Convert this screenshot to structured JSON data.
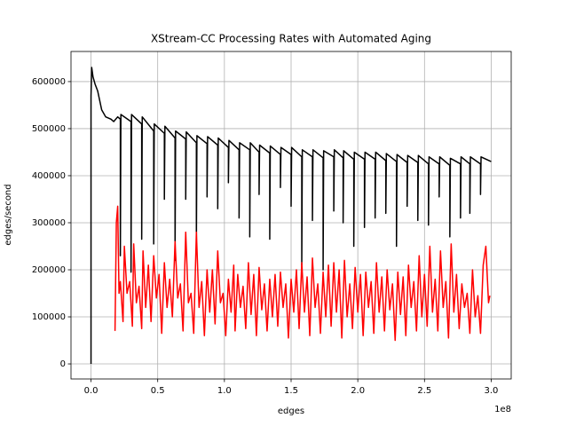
{
  "chart_data": {
    "type": "line",
    "title": "XStream-CC Processing Rates with Automated Aging",
    "x_label": "edges",
    "y_label": "edges/second",
    "x_offset_label": "1e8",
    "xlim": [
      -15000000,
      315000000
    ],
    "ylim": [
      -32000,
      664000
    ],
    "xticks": [
      {
        "value": 0,
        "label": "0.0"
      },
      {
        "value": 50000000,
        "label": "0.5"
      },
      {
        "value": 100000000,
        "label": "1.0"
      },
      {
        "value": 150000000,
        "label": "1.5"
      },
      {
        "value": 200000000,
        "label": "2.0"
      },
      {
        "value": 250000000,
        "label": "2.5"
      },
      {
        "value": 300000000,
        "label": "3.0"
      }
    ],
    "yticks": [
      0,
      100000,
      200000,
      300000,
      400000,
      500000,
      600000
    ],
    "grid": true,
    "series": [
      {
        "color": "#000000",
        "x": [
          0,
          0,
          500000,
          1500000,
          3000000,
          5000000,
          8000000,
          11000000,
          15000000,
          17000000,
          20000000,
          22000000,
          22000000,
          22400000,
          30000000,
          30000000,
          30400000,
          38000000,
          38000000,
          38400000,
          47000000,
          47000000,
          47400000,
          55000000,
          55000000,
          55400000,
          63000000,
          63000000,
          63400000,
          71000000,
          71000000,
          71400000,
          79000000,
          79000000,
          79400000,
          87000000,
          87000000,
          87400000,
          95000000,
          95000000,
          95400000,
          103000000,
          103000000,
          103400000,
          111000000,
          111000000,
          111400000,
          119000000,
          119000000,
          119400000,
          126000000,
          126000000,
          126400000,
          134000000,
          134000000,
          134400000,
          142000000,
          142000000,
          142400000,
          150000000,
          150000000,
          150400000,
          158000000,
          158000000,
          158400000,
          166000000,
          166000000,
          166400000,
          174000000,
          174000000,
          174400000,
          182000000,
          182000000,
          182400000,
          189000000,
          189000000,
          189400000,
          197000000,
          197000000,
          197400000,
          205000000,
          205000000,
          205400000,
          213000000,
          213000000,
          213400000,
          221000000,
          221000000,
          221400000,
          229000000,
          229000000,
          229400000,
          237000000,
          237000000,
          237400000,
          245000000,
          245000000,
          245400000,
          253000000,
          253000000,
          253400000,
          261000000,
          261000000,
          261400000,
          269000000,
          269000000,
          269400000,
          277000000,
          277000000,
          277400000,
          284000000,
          284000000,
          284400000,
          292000000,
          292000000,
          292400000,
          300000000
        ],
        "values": [
          0,
          570000,
          630000,
          610000,
          595000,
          580000,
          540000,
          525000,
          520000,
          515000,
          525000,
          520000,
          230000,
          530000,
          515000,
          195000,
          530000,
          510000,
          265000,
          525000,
          495000,
          255000,
          510000,
          490000,
          350000,
          505000,
          480000,
          220000,
          495000,
          478000,
          350000,
          493000,
          470000,
          260000,
          485000,
          468000,
          355000,
          483000,
          465000,
          330000,
          480000,
          460000,
          385000,
          475000,
          455000,
          310000,
          470000,
          455000,
          270000,
          470000,
          450000,
          360000,
          465000,
          448000,
          265000,
          463000,
          445000,
          375000,
          460000,
          445000,
          335000,
          460000,
          440000,
          210000,
          455000,
          440000,
          305000,
          455000,
          438000,
          200000,
          453000,
          440000,
          325000,
          455000,
          438000,
          300000,
          453000,
          435000,
          250000,
          450000,
          435000,
          290000,
          450000,
          435000,
          310000,
          450000,
          432000,
          320000,
          447000,
          430000,
          250000,
          445000,
          428000,
          335000,
          443000,
          428000,
          305000,
          443000,
          425000,
          295000,
          440000,
          425000,
          355000,
          440000,
          422000,
          270000,
          437000,
          425000,
          310000,
          440000,
          425000,
          320000,
          440000,
          425000,
          360000,
          440000,
          430000
        ]
      },
      {
        "color": "#ff0000",
        "x": [
          18000000,
          19000000,
          20000000,
          21000000,
          22000000,
          24000000,
          25000000,
          27000000,
          29000000,
          31000000,
          32000000,
          34000000,
          36000000,
          38000000,
          39000000,
          41000000,
          43000000,
          45000000,
          47000000,
          49000000,
          51000000,
          53000000,
          55000000,
          57000000,
          59000000,
          61000000,
          63000000,
          65000000,
          67000000,
          69000000,
          71000000,
          73000000,
          75000000,
          77000000,
          79000000,
          81000000,
          83000000,
          85000000,
          87000000,
          89000000,
          91000000,
          93000000,
          95000000,
          97000000,
          99000000,
          101000000,
          103000000,
          105000000,
          107000000,
          108000000,
          110000000,
          112000000,
          114000000,
          116000000,
          118000000,
          120000000,
          122000000,
          124000000,
          126000000,
          128000000,
          130000000,
          132000000,
          134000000,
          136000000,
          138000000,
          140000000,
          142000000,
          144000000,
          146000000,
          148000000,
          150000000,
          152000000,
          154000000,
          156000000,
          158000000,
          160000000,
          162000000,
          164000000,
          166000000,
          168000000,
          170000000,
          172000000,
          174000000,
          176000000,
          178000000,
          180000000,
          182000000,
          184000000,
          186000000,
          188000000,
          190000000,
          192000000,
          194000000,
          196000000,
          198000000,
          200000000,
          202000000,
          204000000,
          206000000,
          208000000,
          210000000,
          212000000,
          214000000,
          216000000,
          218000000,
          220000000,
          222000000,
          224000000,
          226000000,
          228000000,
          230000000,
          232000000,
          234000000,
          236000000,
          238000000,
          240000000,
          242000000,
          244000000,
          246000000,
          248000000,
          250000000,
          252000000,
          254000000,
          256000000,
          258000000,
          260000000,
          262000000,
          264000000,
          266000000,
          268000000,
          270000000,
          272000000,
          274000000,
          276000000,
          278000000,
          280000000,
          282000000,
          284000000,
          286000000,
          288000000,
          290000000,
          292000000,
          294000000,
          296000000,
          298000000,
          299000000
        ],
        "values": [
          70000,
          300000,
          335000,
          150000,
          175000,
          90000,
          250000,
          150000,
          175000,
          80000,
          255000,
          130000,
          165000,
          75000,
          240000,
          120000,
          210000,
          90000,
          230000,
          140000,
          190000,
          65000,
          215000,
          120000,
          180000,
          100000,
          260000,
          140000,
          170000,
          70000,
          280000,
          130000,
          150000,
          65000,
          280000,
          120000,
          175000,
          60000,
          200000,
          110000,
          200000,
          85000,
          240000,
          130000,
          150000,
          60000,
          180000,
          110000,
          210000,
          70000,
          190000,
          120000,
          165000,
          75000,
          215000,
          105000,
          190000,
          60000,
          205000,
          115000,
          170000,
          70000,
          180000,
          100000,
          190000,
          80000,
          195000,
          120000,
          170000,
          55000,
          180000,
          110000,
          200000,
          75000,
          215000,
          110000,
          185000,
          60000,
          225000,
          120000,
          170000,
          65000,
          195000,
          100000,
          210000,
          80000,
          215000,
          110000,
          200000,
          55000,
          220000,
          100000,
          170000,
          75000,
          205000,
          110000,
          190000,
          60000,
          195000,
          120000,
          175000,
          65000,
          215000,
          110000,
          185000,
          70000,
          200000,
          115000,
          170000,
          50000,
          195000,
          105000,
          185000,
          60000,
          210000,
          120000,
          175000,
          70000,
          230000,
          100000,
          190000,
          80000,
          250000,
          110000,
          180000,
          70000,
          240000,
          120000,
          175000,
          55000,
          255000,
          110000,
          190000,
          75000,
          170000,
          120000,
          150000,
          65000,
          200000,
          100000,
          145000,
          65000,
          210000,
          250000,
          130000,
          145000
        ]
      }
    ]
  }
}
